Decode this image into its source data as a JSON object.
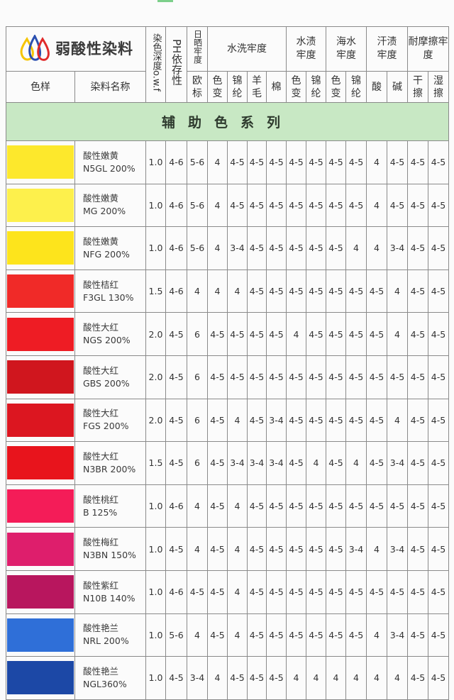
{
  "header": {
    "brand": "弱酸性染料",
    "depth": "染色深度o.w.f",
    "ph": "PH依存性",
    "light": "日晒牢度",
    "washing": "水洗牢度",
    "water": "水渍牢度",
    "seawater": "海水牢度",
    "perspiration": "汗渍牢度",
    "rubbing": "耐摩擦牢度",
    "swatch": "色样",
    "dye_name": "染料名称",
    "sub": [
      "欧标",
      "色变",
      "锦纶",
      "羊毛",
      "棉",
      "色变",
      "锦纶",
      "色变",
      "锦纶",
      "酸",
      "碱",
      "干擦",
      "湿擦"
    ]
  },
  "series_title": "辅助色系列",
  "colors": {
    "band": "#c8e8c4",
    "logo_yellow": "#f5c400",
    "logo_blue": "#2a4fb0",
    "logo_red": "#e02a2a"
  },
  "rows": [
    {
      "color": "#fde82c",
      "name": "酸性嫩黄",
      "code": "N5GL 200%",
      "values": [
        "1.0",
        "4-6",
        "5-6",
        "4",
        "4-5",
        "4-5",
        "4-5",
        "4-5",
        "4-5",
        "4-5",
        "4-5",
        "4",
        "4-5",
        "4-5",
        "4-5"
      ]
    },
    {
      "color": "#fdf04c",
      "name": "酸性嫩黄",
      "code": "MG 200%",
      "values": [
        "1.0",
        "4-6",
        "5-6",
        "4",
        "4-5",
        "4-5",
        "4-5",
        "4-5",
        "4-5",
        "4-5",
        "4-5",
        "4",
        "4-5",
        "4-5",
        "4-5"
      ]
    },
    {
      "color": "#fde41c",
      "name": "酸性嫩黄",
      "code": "NFG 200%",
      "values": [
        "1.0",
        "4-6",
        "5-6",
        "4",
        "3-4",
        "4-5",
        "4-5",
        "4-5",
        "4-5",
        "4-5",
        "4",
        "4",
        "3-4",
        "4-5",
        "4-5"
      ]
    },
    {
      "color": "#f02a28",
      "name": "酸性桔红",
      "code": "F3GL 130%",
      "values": [
        "1.5",
        "4-6",
        "4",
        "4",
        "4",
        "4-5",
        "4-5",
        "4-5",
        "4-5",
        "4-5",
        "4-5",
        "4-5",
        "4",
        "4-5",
        "4-5"
      ]
    },
    {
      "color": "#ee1c24",
      "name": "酸性大红",
      "code": "NGS 200%",
      "values": [
        "2.0",
        "4-5",
        "6",
        "4-5",
        "4-5",
        "4-5",
        "4-5",
        "4",
        "4-5",
        "4-5",
        "4-5",
        "4-5",
        "4",
        "4-5",
        "4-5"
      ]
    },
    {
      "color": "#d0161e",
      "name": "酸性大红",
      "code": "GBS 200%",
      "values": [
        "2.0",
        "4-5",
        "6",
        "4-5",
        "4-5",
        "4-5",
        "4-5",
        "4-5",
        "4-5",
        "4-5",
        "4-5",
        "4-5",
        "4-5",
        "4-5",
        "4-5"
      ]
    },
    {
      "color": "#dc1620",
      "name": "酸性大红",
      "code": "FGS 200%",
      "values": [
        "2.0",
        "4-5",
        "6",
        "4-5",
        "4",
        "4-5",
        "3-4",
        "4-5",
        "4-5",
        "4-5",
        "4-5",
        "4-5",
        "4",
        "4-5",
        "4-5"
      ]
    },
    {
      "color": "#e8141c",
      "name": "酸性大红",
      "code": "N3BR 200%",
      "values": [
        "1.5",
        "4-5",
        "6",
        "4-5",
        "3-4",
        "3-4",
        "3-4",
        "4-5",
        "4",
        "4-5",
        "4",
        "4-5",
        "3-4",
        "4-5",
        "4-5"
      ]
    },
    {
      "color": "#f41c58",
      "name": "酸性桃红",
      "code": "B 125%",
      "values": [
        "1.0",
        "4-6",
        "4",
        "4-5",
        "4",
        "4-5",
        "4-5",
        "4-5",
        "4-5",
        "4-5",
        "4-5",
        "4-5",
        "4-5",
        "4-5",
        "4-5"
      ]
    },
    {
      "color": "#de1e6c",
      "name": "酸性梅红",
      "code": "N3BN 150%",
      "values": [
        "1.0",
        "4-5",
        "4",
        "4-5",
        "4",
        "4-5",
        "4-5",
        "4-5",
        "4-5",
        "4-5",
        "3-4",
        "4",
        "3-4",
        "4-5",
        "4-5"
      ]
    },
    {
      "color": "#b8165e",
      "name": "酸性紫红",
      "code": "N10B 140%",
      "values": [
        "1.0",
        "4-6",
        "4-5",
        "4-5",
        "4",
        "4-5",
        "4-5",
        "4-5",
        "4-5",
        "4-5",
        "4-5",
        "4-5",
        "4-5",
        "4-5",
        "4-5"
      ]
    },
    {
      "color": "#2f6fd8",
      "name": "酸性艳兰",
      "code": "NRL 200%",
      "values": [
        "1.0",
        "5-6",
        "4",
        "4-5",
        "4",
        "4-5",
        "4-5",
        "4-5",
        "4-5",
        "4-5",
        "4-5",
        "4",
        "3-4",
        "4-5",
        "4-5"
      ]
    },
    {
      "color": "#1c48a6",
      "name": "酸性艳兰",
      "code": "NGL360%",
      "values": [
        "1.0",
        "4-5",
        "3-4",
        "4",
        "4-5",
        "4-5",
        "4-5",
        "4",
        "4",
        "4",
        "4",
        "4",
        "4",
        "4-5",
        "4-5"
      ]
    }
  ]
}
